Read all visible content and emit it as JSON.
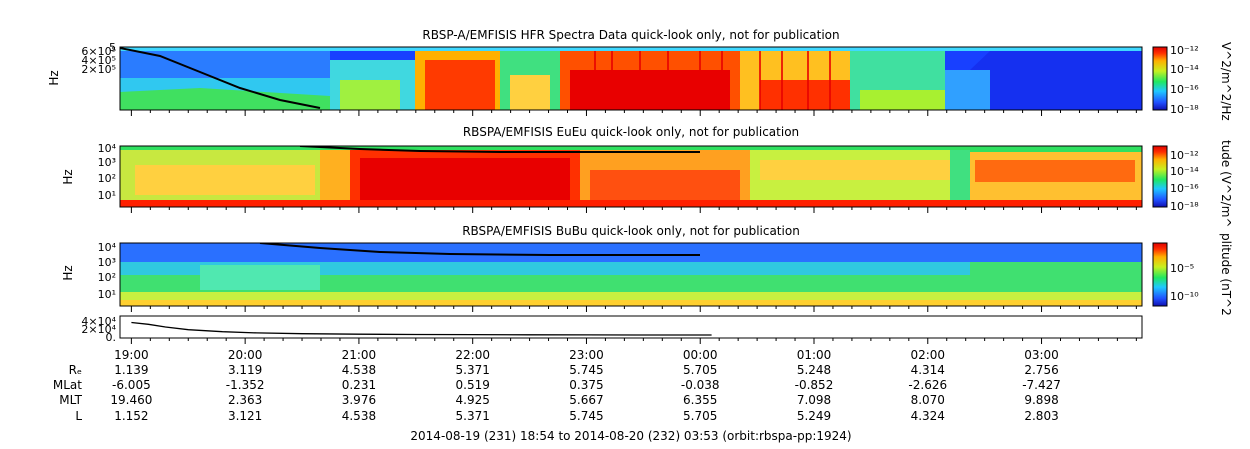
{
  "chart_data": [
    {
      "type": "heatmap",
      "title": "RBSP-A/EMFISIS  HFR Spectra Data quick-look only, not for publication",
      "ylabel": "Hz",
      "y_ticks": [
        "6×10⁵",
        "4×10⁵",
        "2×10⁵"
      ],
      "y_top_label": "5",
      "colorbar_label": "V^2/m^2/Hz",
      "colorbar_ticks": [
        "10⁻¹²",
        "10⁻¹⁴",
        "10⁻¹⁶",
        "10⁻¹⁸"
      ],
      "color_range_log": [
        -18,
        -12
      ]
    },
    {
      "type": "heatmap",
      "title": "RBSPA/EMFISIS  EuEu quick-look only, not for publication",
      "ylabel": "Hz",
      "y_ticks": [
        "10⁴",
        "10³",
        "10²",
        "10¹"
      ],
      "colorbar_label": "tude (V^2/m^",
      "colorbar_ticks": [
        "10⁻¹²",
        "10⁻¹⁴",
        "10⁻¹⁶",
        "10⁻¹⁸"
      ],
      "color_range_log": [
        -18,
        -12
      ]
    },
    {
      "type": "heatmap",
      "title": "RBSPA/EMFISIS  BuBu quick-look only, not for publication",
      "ylabel": "Hz",
      "y_ticks": [
        "10⁴",
        "10³",
        "10²",
        "10¹"
      ],
      "colorbar_label": "plitude (nT^2",
      "colorbar_ticks": [
        "10⁻⁵",
        "10⁻¹⁰"
      ],
      "color_range_log": [
        -10,
        -3
      ]
    },
    {
      "type": "line",
      "title": "",
      "y_ticks": [
        "4×10⁴",
        "2×10⁴",
        "0."
      ],
      "ylim": [
        0,
        40000
      ],
      "x_hours": [
        0,
        0.15,
        0.3,
        0.5,
        0.8,
        1.1,
        1.5,
        2.0,
        2.5,
        3.0,
        3.5,
        4.0,
        4.5,
        5.0,
        5.1
      ],
      "values": [
        30000,
        26000,
        20000,
        14000,
        9500,
        7000,
        5200,
        4000,
        3400,
        3000,
        2700,
        2500,
        2300,
        2200,
        2200
      ]
    }
  ],
  "time_axis": {
    "start_hour": 18.9,
    "end_hour": 27.883,
    "labels": [
      "19:00",
      "20:00",
      "21:00",
      "22:00",
      "23:00",
      "00:00",
      "01:00",
      "02:00",
      "03:00"
    ]
  },
  "ephemeris": {
    "row_labels": [
      "Rₑ",
      "MLat",
      "MLT",
      "L"
    ],
    "rows": [
      [
        "1.139",
        "3.119",
        "4.538",
        "5.371",
        "5.745",
        "5.705",
        "5.248",
        "4.314",
        "2.756"
      ],
      [
        "-6.005",
        "-1.352",
        "0.231",
        "0.519",
        "0.375",
        "-0.038",
        "-0.852",
        "-2.626",
        "-7.427"
      ],
      [
        "19.460",
        "2.363",
        "3.976",
        "4.925",
        "5.667",
        "6.355",
        "7.098",
        "8.070",
        "9.898"
      ],
      [
        "1.152",
        "3.121",
        "4.538",
        "5.371",
        "5.745",
        "5.705",
        "5.249",
        "4.324",
        "2.803"
      ]
    ]
  },
  "footer": "2014-08-19 (231) 18:54 to 2014-08-20 (232) 03:53 (orbit:rbspa-pp:1924)"
}
